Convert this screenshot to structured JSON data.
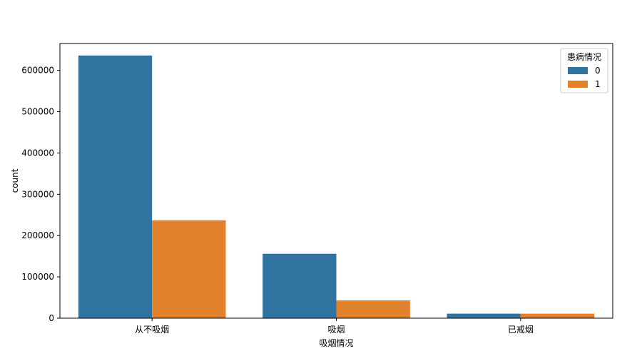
{
  "chart_data": {
    "type": "bar",
    "title": "",
    "xlabel": "吸烟情况",
    "ylabel": "count",
    "categories": [
      "从不吸烟",
      "吸烟",
      "已戒烟"
    ],
    "series": [
      {
        "name": "0",
        "color": "#3274a1",
        "values": [
          636000,
          156000,
          11000
        ]
      },
      {
        "name": "1",
        "color": "#e1812c",
        "values": [
          237000,
          43000,
          11000
        ]
      }
    ],
    "ylim": [
      0,
      665000
    ],
    "yticks": [
      0,
      100000,
      200000,
      300000,
      400000,
      500000,
      600000
    ],
    "ytick_labels": [
      "0",
      "100000",
      "200000",
      "300000",
      "400000",
      "500000",
      "600000"
    ],
    "legend": {
      "title": "患病情况",
      "position": "top-right"
    },
    "grid": false
  }
}
